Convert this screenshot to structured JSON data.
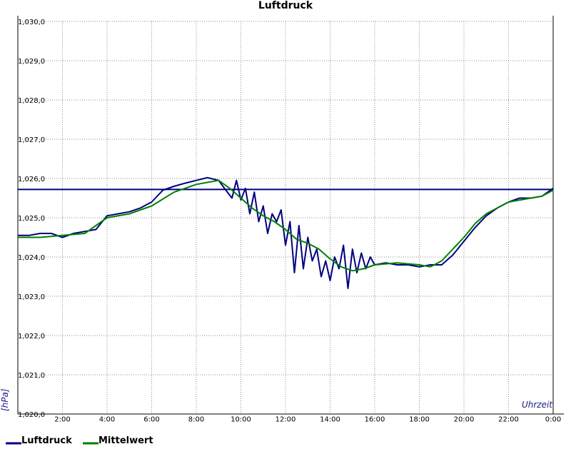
{
  "chart_data": {
    "type": "line",
    "title": "Luftdruck",
    "xlabel": "Uhrzeit",
    "ylabel": "[hPa]",
    "xlim": [
      0,
      24
    ],
    "ylim": [
      1020.0,
      1030.0
    ],
    "grid": true,
    "legend_position": "bottom-left",
    "y_ticks": [
      "1,020,0",
      "1,021,0",
      "1,022,0",
      "1,023,0",
      "1,024,0",
      "1,025,0",
      "1,026,0",
      "1,027,0",
      "1,028,0",
      "1,029,0",
      "1,030,0"
    ],
    "x_ticks": [
      "2:00",
      "4:00",
      "6:00",
      "8:00",
      "10:00",
      "12:00",
      "14:00",
      "16:00",
      "18:00",
      "20:00",
      "22:00",
      "0:00"
    ],
    "reference_line": {
      "value": 1025.72,
      "color": "#000080"
    },
    "series": [
      {
        "name": "Luftdruck",
        "color": "#000080",
        "x": [
          0.0,
          0.5,
          1.0,
          1.5,
          2.0,
          2.5,
          3.0,
          3.5,
          4.0,
          4.5,
          5.0,
          5.5,
          6.0,
          6.5,
          7.0,
          7.5,
          8.0,
          8.5,
          9.0,
          9.3,
          9.6,
          9.8,
          10.0,
          10.2,
          10.4,
          10.6,
          10.8,
          11.0,
          11.2,
          11.4,
          11.6,
          11.8,
          12.0,
          12.2,
          12.4,
          12.6,
          12.8,
          13.0,
          13.2,
          13.4,
          13.6,
          13.8,
          14.0,
          14.2,
          14.4,
          14.6,
          14.8,
          15.0,
          15.2,
          15.4,
          15.6,
          15.8,
          16.0,
          16.5,
          17.0,
          17.5,
          18.0,
          18.5,
          19.0,
          19.5,
          20.0,
          20.5,
          21.0,
          21.5,
          22.0,
          22.5,
          23.0,
          23.5,
          24.0
        ],
        "values": [
          1024.55,
          1024.55,
          1024.6,
          1024.6,
          1024.5,
          1024.6,
          1024.65,
          1024.7,
          1025.05,
          1025.1,
          1025.15,
          1025.25,
          1025.4,
          1025.7,
          1025.8,
          1025.88,
          1025.95,
          1026.02,
          1025.95,
          1025.72,
          1025.5,
          1025.95,
          1025.45,
          1025.75,
          1025.1,
          1025.65,
          1024.9,
          1025.3,
          1024.6,
          1025.1,
          1024.9,
          1025.2,
          1024.3,
          1024.9,
          1023.6,
          1024.8,
          1023.7,
          1024.5,
          1023.9,
          1024.2,
          1023.5,
          1023.9,
          1023.4,
          1024.0,
          1023.7,
          1024.3,
          1023.2,
          1024.2,
          1023.6,
          1024.1,
          1023.7,
          1024.0,
          1023.8,
          1023.85,
          1023.8,
          1023.8,
          1023.75,
          1023.8,
          1023.8,
          1024.05,
          1024.4,
          1024.75,
          1025.05,
          1025.25,
          1025.4,
          1025.5,
          1025.5,
          1025.55,
          1025.75
        ]
      },
      {
        "name": "Mittelwert",
        "color": "#008000",
        "x": [
          0.0,
          1.0,
          2.0,
          3.0,
          3.5,
          4.0,
          5.0,
          6.0,
          7.0,
          8.0,
          9.0,
          9.5,
          10.0,
          10.5,
          11.0,
          11.5,
          12.0,
          12.5,
          13.0,
          13.5,
          14.0,
          14.5,
          15.0,
          15.5,
          16.0,
          17.0,
          18.0,
          18.5,
          19.0,
          19.5,
          20.0,
          20.5,
          21.0,
          22.0,
          23.0,
          23.5,
          24.0
        ],
        "values": [
          1024.5,
          1024.5,
          1024.55,
          1024.6,
          1024.8,
          1025.0,
          1025.1,
          1025.3,
          1025.65,
          1025.85,
          1025.95,
          1025.75,
          1025.5,
          1025.25,
          1025.05,
          1024.9,
          1024.7,
          1024.45,
          1024.35,
          1024.2,
          1023.95,
          1023.75,
          1023.65,
          1023.7,
          1023.8,
          1023.85,
          1023.8,
          1023.75,
          1023.9,
          1024.2,
          1024.5,
          1024.85,
          1025.1,
          1025.4,
          1025.5,
          1025.55,
          1025.7
        ]
      }
    ]
  }
}
